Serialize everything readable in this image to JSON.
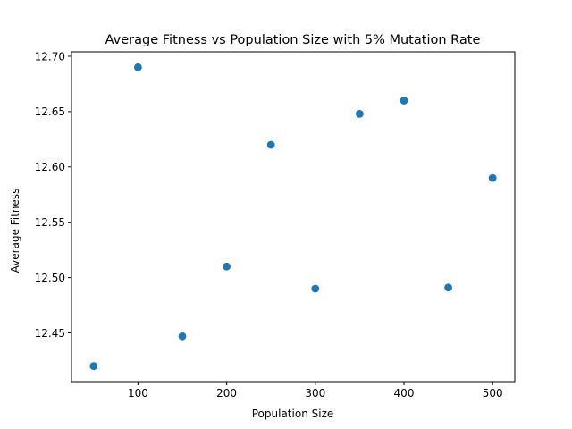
{
  "chart_data": {
    "type": "scatter",
    "title": "Average Fitness vs Population Size with 5% Mutation Rate",
    "xlabel": "Population Size",
    "ylabel": "Average Fitness",
    "xlim": [
      25,
      525
    ],
    "ylim": [
      12.406,
      12.704
    ],
    "xticks": [
      100,
      200,
      300,
      400,
      500
    ],
    "xtick_labels": [
      "100",
      "200",
      "300",
      "400",
      "500"
    ],
    "yticks": [
      12.45,
      12.5,
      12.55,
      12.6,
      12.65,
      12.7
    ],
    "ytick_labels": [
      "12.45",
      "12.50",
      "12.55",
      "12.60",
      "12.65",
      "12.70"
    ],
    "grid": false,
    "color": "#1f77b4",
    "points": [
      {
        "x": 50,
        "y": 12.42
      },
      {
        "x": 100,
        "y": 12.69
      },
      {
        "x": 150,
        "y": 12.447
      },
      {
        "x": 200,
        "y": 12.51
      },
      {
        "x": 250,
        "y": 12.62
      },
      {
        "x": 300,
        "y": 12.49
      },
      {
        "x": 350,
        "y": 12.648
      },
      {
        "x": 400,
        "y": 12.66
      },
      {
        "x": 450,
        "y": 12.491
      },
      {
        "x": 500,
        "y": 12.59
      }
    ]
  }
}
